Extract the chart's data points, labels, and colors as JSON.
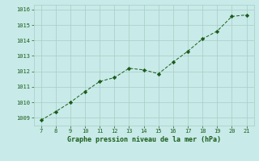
{
  "x": [
    7,
    8,
    9,
    10,
    11,
    12,
    13,
    14,
    15,
    16,
    17,
    18,
    19,
    20,
    21
  ],
  "y": [
    1008.85,
    1009.4,
    1010.0,
    1010.7,
    1011.35,
    1011.6,
    1012.2,
    1012.1,
    1011.85,
    1012.6,
    1013.3,
    1014.1,
    1014.6,
    1015.55,
    1015.65
  ],
  "line_color": "#1a5c1a",
  "marker": "D",
  "marker_size": 2.2,
  "bg_color": "#c8eae8",
  "grid_color": "#a8ccc8",
  "xlabel": "Graphe pression niveau de la mer (hPa)",
  "xlabel_color": "#1a5c1a",
  "tick_color": "#1a5c1a",
  "xlim": [
    6.5,
    21.5
  ],
  "ylim": [
    1008.5,
    1016.3
  ],
  "yticks": [
    1009,
    1010,
    1011,
    1012,
    1013,
    1014,
    1015,
    1016
  ],
  "xticks": [
    7,
    8,
    9,
    10,
    11,
    12,
    13,
    14,
    15,
    16,
    17,
    18,
    19,
    20,
    21
  ],
  "tick_fontsize": 5.0,
  "xlabel_fontsize": 6.0
}
